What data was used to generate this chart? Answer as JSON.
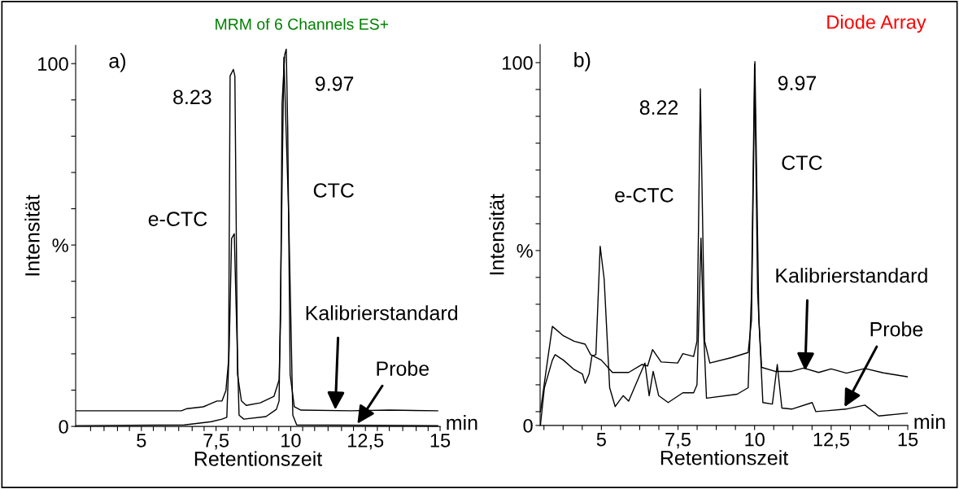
{
  "chart_data": [
    {
      "type": "line",
      "title": "MRM of 6 Channels ES+",
      "xlabel": "Retentionszeit",
      "ylabel": "Intensität",
      "xlim": [
        2.8,
        15
      ],
      "ylim": [
        0,
        105
      ],
      "grid": false,
      "legend": false,
      "marker": "none",
      "line_style": "solid",
      "xticks": [
        {
          "value": 3.3,
          "label": null
        },
        {
          "value": 3.75,
          "label": null
        },
        {
          "value": 4.2,
          "label": null
        },
        {
          "value": 4.6,
          "label": null
        },
        5,
        {
          "value": 5.4,
          "label": null
        },
        {
          "value": 5.8,
          "label": null
        },
        {
          "value": 6.25,
          "label": null
        },
        {
          "value": 6.7,
          "label": null
        },
        {
          "value": 7.1,
          "label": null
        },
        {
          "value": 7.5,
          "label": "7,5"
        },
        {
          "value": 7.9,
          "label": null
        },
        {
          "value": 8.3,
          "label": null
        },
        {
          "value": 8.75,
          "label": null
        },
        {
          "value": 9.2,
          "label": null
        },
        {
          "value": 9.6,
          "label": null
        },
        10,
        {
          "value": 10.4,
          "label": null
        },
        {
          "value": 10.8,
          "label": null
        },
        {
          "value": 11.25,
          "label": null
        },
        {
          "value": 11.7,
          "label": null
        },
        {
          "value": 12.1,
          "label": null
        },
        {
          "value": 12.5,
          "label": "12,5"
        },
        {
          "value": 12.9,
          "label": null
        },
        {
          "value": 13.3,
          "label": null
        },
        {
          "value": 13.75,
          "label": null
        },
        {
          "value": 14.2,
          "label": null
        },
        {
          "value": 14.6,
          "label": null
        },
        15
      ],
      "yticks": [
        0,
        {
          "value": 10,
          "label": null
        },
        {
          "value": 20,
          "label": null
        },
        {
          "value": 30,
          "label": null
        },
        {
          "value": 40,
          "label": null
        },
        {
          "value": 50,
          "label": "%"
        },
        {
          "value": 60,
          "label": null
        },
        {
          "value": 70,
          "label": null
        },
        {
          "value": 80,
          "label": null
        },
        {
          "value": 90,
          "label": null
        },
        100
      ],
      "series": [
        {
          "color": "#000000",
          "x": [
            2.8,
            6.34,
            6.53,
            7.07,
            7.53,
            7.7,
            7.83,
            7.92,
            7.97,
            8.08,
            8.13,
            8.22,
            8.35,
            8.51,
            8.98,
            9.44,
            9.61,
            9.66,
            9.71,
            9.8,
            9.85,
            9.9,
            9.98,
            10.12,
            10.34,
            12.0,
            13.3,
            14.92
          ],
          "values": [
            4.3,
            4.3,
            4.9,
            5.4,
            7.0,
            7.0,
            9.9,
            18.2,
            96.6,
            98.4,
            96.6,
            14.3,
            7.0,
            5.8,
            6.5,
            8.3,
            12.8,
            29.4,
            89,
            102.5,
            104,
            81.6,
            14.3,
            5.4,
            4.5,
            4.3,
            4.5,
            4.3
          ]
        },
        {
          "color": "#000000",
          "x": [
            2.8,
            6.44,
            7.34,
            7.7,
            7.86,
            7.94,
            8.02,
            8.11,
            8.16,
            8.27,
            8.43,
            9.17,
            9.52,
            9.61,
            9.77,
            9.93,
            10.07,
            10.2,
            14.92
          ],
          "values": [
            0.2,
            0.4,
            1.3,
            2.0,
            2.5,
            21.7,
            51.8,
            53.1,
            36.8,
            3.1,
            2.0,
            2.7,
            4.7,
            7.0,
            101.8,
            59,
            3.1,
            0.4,
            0.2
          ]
        }
      ],
      "annotations": [
        "a)",
        "min",
        "8.23",
        "9.97",
        "e-CTC",
        "CTC",
        {
          "text": "Kalibrierstandard",
          "x": 11.49,
          "y": 4.3
        },
        {
          "text": "Probe",
          "x": 12.19,
          "y": 0.2
        }
      ]
    },
    {
      "type": "line",
      "title": "Diode Array",
      "xlabel": "Retentionszeit",
      "ylabel": "Intensität",
      "xlim": [
        3,
        15
      ],
      "ylim": [
        0,
        105
      ],
      "grid": false,
      "legend": false,
      "marker": "none",
      "line_style": "solid",
      "xticks": [
        {
          "value": 3.125,
          "label": null
        },
        {
          "value": 3.75,
          "label": null
        },
        {
          "value": 4.375,
          "label": null
        },
        5,
        {
          "value": 5.625,
          "label": null
        },
        {
          "value": 6.25,
          "label": null
        },
        {
          "value": 6.875,
          "label": null
        },
        {
          "value": 7.5,
          "label": "7,5"
        },
        {
          "value": 8.125,
          "label": null
        },
        {
          "value": 8.75,
          "label": null
        },
        {
          "value": 9.375,
          "label": null
        },
        10,
        {
          "value": 10.625,
          "label": null
        },
        {
          "value": 11.25,
          "label": null
        },
        {
          "value": 11.875,
          "label": null
        },
        {
          "value": 12.5,
          "label": "12,5"
        },
        {
          "value": 13.125,
          "label": null
        },
        {
          "value": 13.75,
          "label": null
        },
        {
          "value": 14.375,
          "label": null
        },
        15
      ],
      "yticks": [
        0,
        {
          "value": 3.8,
          "label": null
        },
        {
          "value": 11.2,
          "label": null
        },
        {
          "value": 18.6,
          "label": null
        },
        {
          "value": 26,
          "label": null
        },
        {
          "value": 33.4,
          "label": null
        },
        {
          "value": 40.8,
          "label": null
        },
        {
          "value": 48.2,
          "label": "%"
        },
        {
          "value": 55.6,
          "label": null
        },
        {
          "value": 63,
          "label": null
        },
        {
          "value": 70.4,
          "label": null
        },
        {
          "value": 77.8,
          "label": null
        },
        {
          "value": 85.2,
          "label": null
        },
        {
          "value": 92.6,
          "label": null
        },
        100
      ],
      "series": [
        {
          "color": "#000000",
          "x": [
            3.01,
            3.18,
            3.4,
            3.76,
            4.11,
            4.47,
            4.65,
            5.0,
            5.36,
            5.89,
            6.33,
            6.51,
            6.67,
            6.95,
            7.49,
            7.66,
            8.01,
            8.12,
            8.23,
            8.37,
            8.54,
            9.25,
            9.79,
            9.9,
            10.01,
            10.14,
            10.23,
            10.67,
            11.21,
            11.6,
            12.09,
            12.5,
            13.0,
            13.6,
            14.2,
            15.0
          ],
          "values": [
            3.8,
            14.2,
            27.3,
            24.7,
            23.2,
            22.4,
            19.5,
            18.0,
            14.6,
            14.6,
            16.8,
            16.4,
            20.9,
            17.5,
            17.2,
            19.8,
            19.0,
            23.2,
            92.8,
            23.2,
            17.2,
            18.7,
            20.1,
            29.1,
            100.3,
            29.1,
            16.0,
            14.9,
            14.9,
            15.8,
            14.6,
            15.6,
            14.4,
            15.7,
            14.5,
            13.4
          ]
        },
        {
          "color": "#000000",
          "x": [
            3.01,
            3.14,
            3.4,
            3.49,
            3.76,
            4.11,
            4.38,
            4.47,
            4.6,
            4.69,
            4.82,
            4.96,
            5.09,
            5.27,
            5.45,
            5.71,
            5.89,
            6.42,
            6.56,
            6.69,
            6.87,
            7.18,
            7.66,
            8.01,
            8.12,
            8.25,
            8.34,
            8.43,
            9.43,
            9.79,
            9.9,
            10.0,
            10.1,
            10.27,
            10.58,
            10.74,
            10.89,
            11.21,
            11.88,
            12.0,
            12.98,
            13.6,
            14.05,
            15.0
          ],
          "values": [
            0.1,
            10.4,
            18.0,
            19.5,
            18.0,
            15.4,
            14.2,
            11.6,
            14.2,
            19.1,
            19.5,
            49.4,
            40.4,
            10.4,
            5.2,
            8.2,
            6.7,
            17.2,
            8.2,
            14.9,
            8.2,
            6.3,
            9.0,
            9.0,
            11.2,
            51.6,
            25.4,
            7.5,
            8.6,
            10.4,
            36.5,
            99.6,
            36.5,
            6.3,
            5.9,
            16.8,
            4.8,
            4.5,
            6.3,
            3.8,
            4.5,
            5.6,
            2.6,
            3.4
          ]
        }
      ],
      "annotations": [
        "b)",
        "min",
        "8.22",
        "9.97",
        "e-CTC",
        "CTC",
        {
          "text": "Kalibrierstandard",
          "x": 11.65,
          "y": 14.8
        },
        {
          "text": "Probe",
          "x": 12.9,
          "y": 4.5
        }
      ]
    }
  ]
}
